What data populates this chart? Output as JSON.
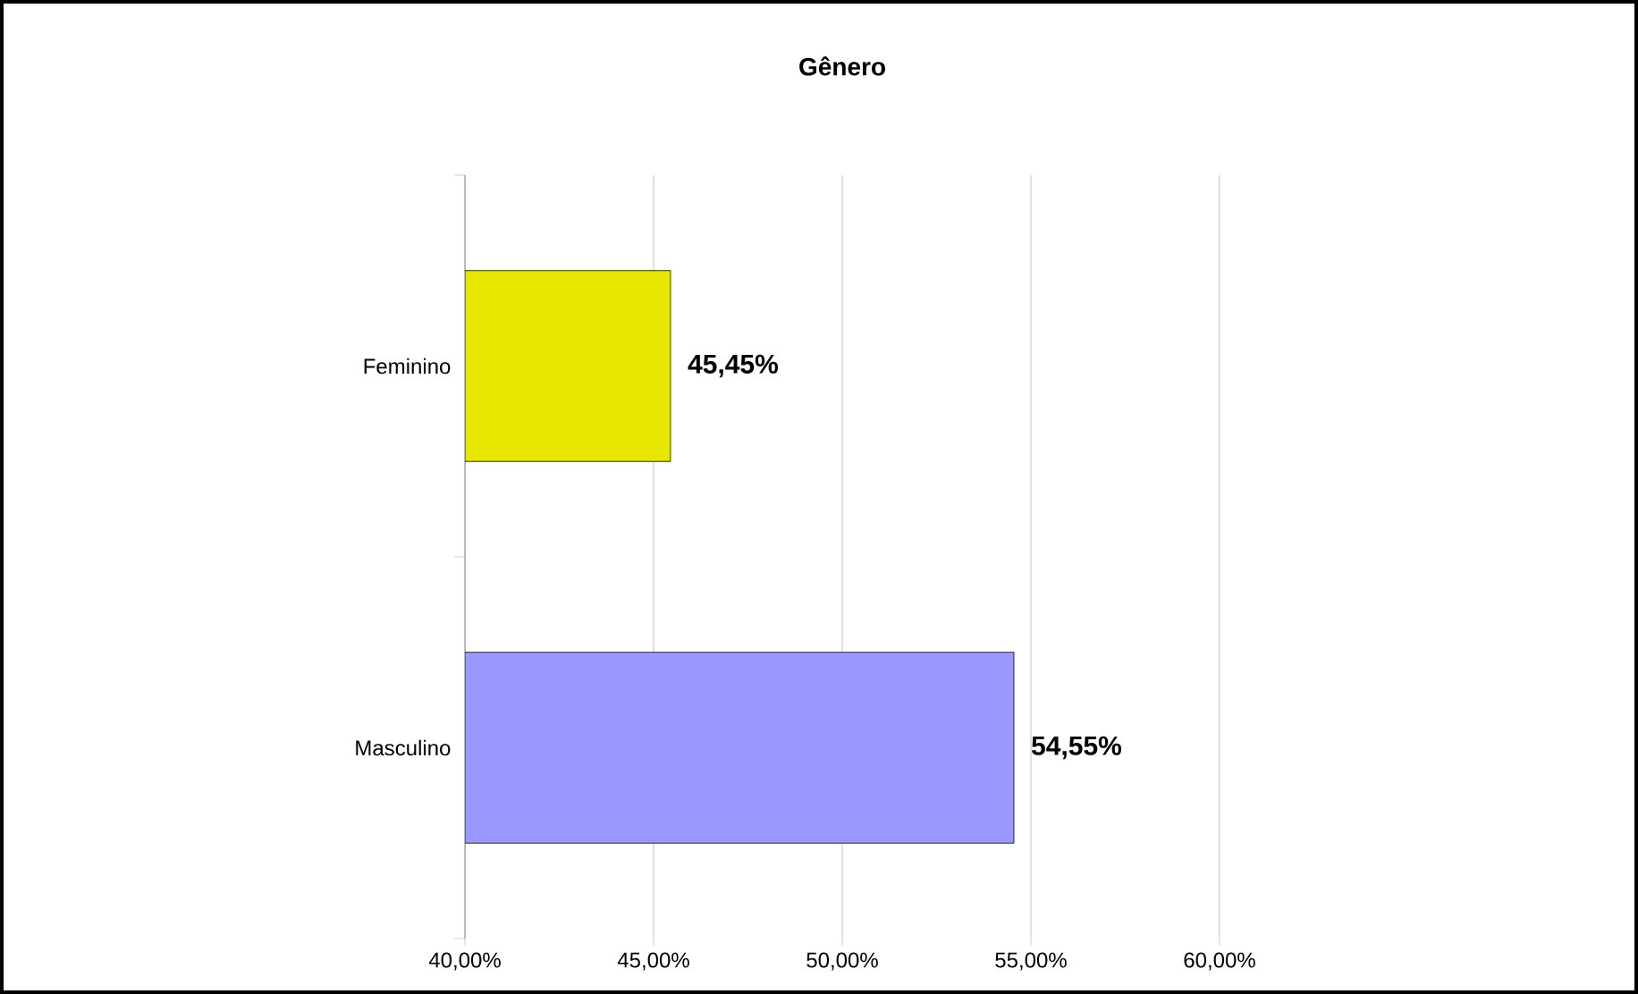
{
  "chart_data": {
    "type": "bar",
    "orientation": "horizontal",
    "title": "Gênero",
    "categories": [
      "Feminino",
      "Masculino"
    ],
    "values": [
      45.45,
      54.55
    ],
    "value_labels": [
      "45,45%",
      "54,55%"
    ],
    "colors": [
      "#e6e600",
      "#9999ff"
    ],
    "xlim": [
      40,
      60
    ],
    "xticks": [
      {
        "value": 40,
        "label": "40,00%"
      },
      {
        "value": 45,
        "label": "45,00%"
      },
      {
        "value": 50,
        "label": "50,00%"
      },
      {
        "value": 55,
        "label": "55,00%"
      },
      {
        "value": 60,
        "label": "60,00%"
      }
    ],
    "grid": "x"
  }
}
